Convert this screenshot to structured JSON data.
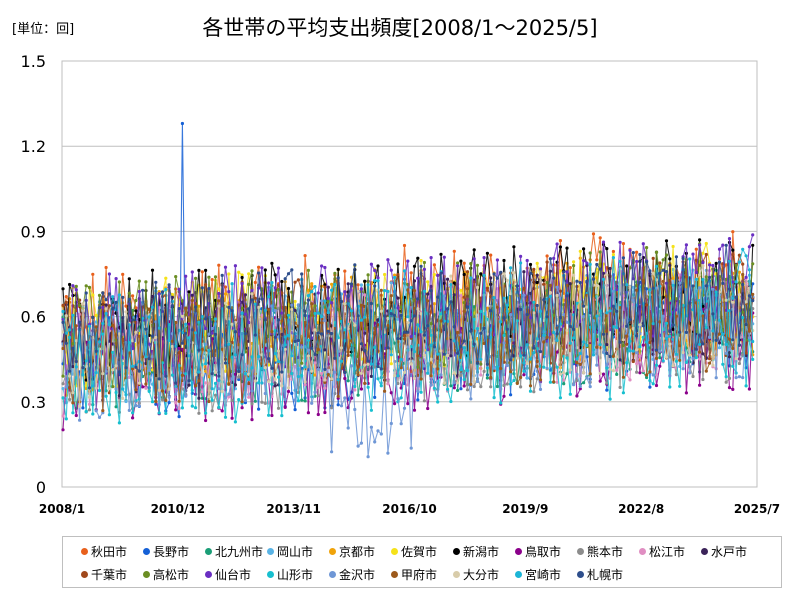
{
  "unit_label": "[単位：回]",
  "title": "各世帯の平均支出頻度[2008/1～2025/5]",
  "chart_data": {
    "type": "line",
    "title": "各世帯の平均支出頻度[2008/1～2025/5]",
    "ylabel": "[単位：回]",
    "xlabel": "",
    "ylim": [
      0,
      1.5
    ],
    "yticks": [
      "0",
      "0.3",
      "0.6",
      "0.9",
      "1.2",
      "1.5"
    ],
    "xticks": [
      "2008/1",
      "2010/12",
      "2013/11",
      "2016/10",
      "2019/9",
      "2022/8",
      "2025/7"
    ],
    "x_start": "2008/1",
    "x_end": "2025/5",
    "grid": true,
    "legend_position": "bottom",
    "series": [
      {
        "name": "秋田市",
        "color": "#e8601c"
      },
      {
        "name": "長野市",
        "color": "#1560d6"
      },
      {
        "name": "北九州市",
        "color": "#1a9e77"
      },
      {
        "name": "岡山市",
        "color": "#5ab4e6"
      },
      {
        "name": "京都市",
        "color": "#f0a30a"
      },
      {
        "name": "佐賀市",
        "color": "#f5e21a"
      },
      {
        "name": "新潟市",
        "color": "#000000"
      },
      {
        "name": "鳥取市",
        "color": "#8b008b"
      },
      {
        "name": "熊本市",
        "color": "#8c8c8c"
      },
      {
        "name": "松江市",
        "color": "#e08ec2"
      },
      {
        "name": "水戸市",
        "color": "#3b2359"
      },
      {
        "name": "千葉市",
        "color": "#a0481c"
      },
      {
        "name": "高松市",
        "color": "#6b8e23"
      },
      {
        "name": "仙台市",
        "color": "#6a2fc2"
      },
      {
        "name": "山形市",
        "color": "#17bfcf"
      },
      {
        "name": "金沢市",
        "color": "#6f97d6"
      },
      {
        "name": "甲府市",
        "color": "#9c5a1c"
      },
      {
        "name": "大分市",
        "color": "#d8ccaa"
      },
      {
        "name": "宮崎市",
        "color": "#1cb5d6"
      },
      {
        "name": "札幌市",
        "color": "#2e4e8c"
      }
    ]
  }
}
